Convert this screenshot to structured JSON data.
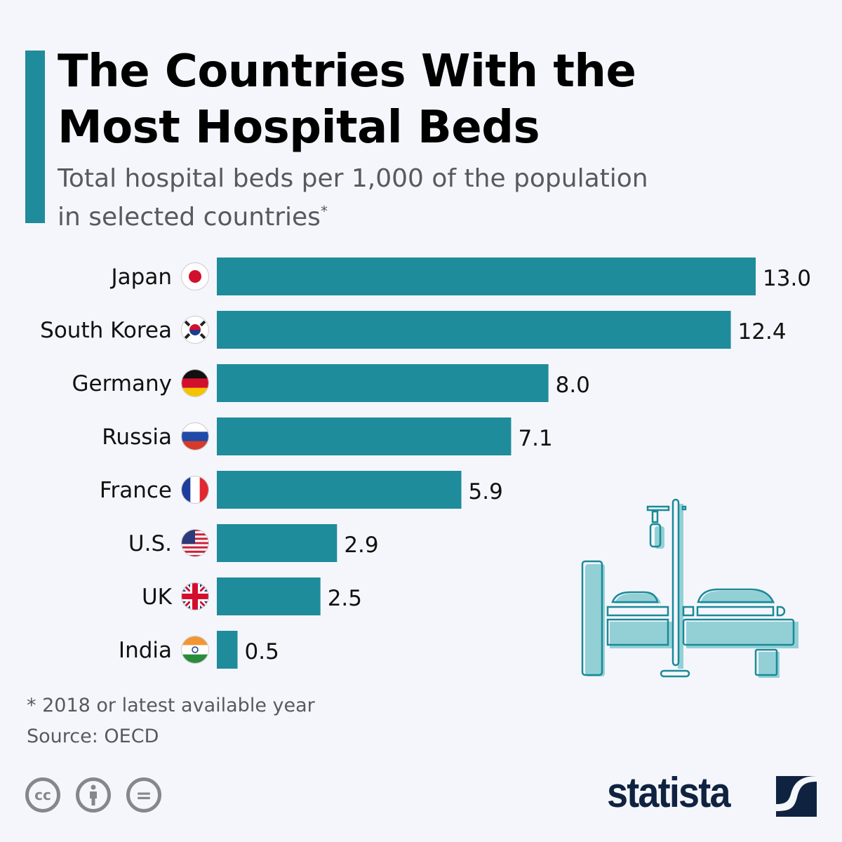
{
  "chart_data": {
    "type": "bar",
    "orientation": "horizontal",
    "title": "The Countries With the Most Hospital Beds",
    "subtitle": "Total hospital beds per 1,000 of the population in selected countries",
    "subtitle_mark": "*",
    "categories": [
      "Japan",
      "South Korea",
      "Germany",
      "Russia",
      "France",
      "U.S.",
      "UK",
      "India"
    ],
    "values": [
      13.0,
      12.4,
      8.0,
      7.1,
      5.9,
      2.9,
      2.5,
      0.5
    ],
    "value_labels": [
      "13.0",
      "12.4",
      "8.0",
      "7.1",
      "5.9",
      "2.9",
      "2.5",
      "0.5"
    ],
    "flags": [
      "japan-flag",
      "south-korea-flag",
      "germany-flag",
      "russia-flag",
      "france-flag",
      "us-flag",
      "uk-flag",
      "india-flag"
    ],
    "xlim": [
      0,
      13
    ],
    "bar_color": "#1f8c9c",
    "grid": false
  },
  "title_line1": "The Countries With the",
  "title_line2": "Most Hospital Beds",
  "subtitle_line1": "Total hospital beds per 1,000 of the population",
  "subtitle_line2": "in selected countries",
  "footnote": "* 2018 or latest available year",
  "source": "Source: OECD",
  "license": {
    "cc": "cc",
    "eq": "="
  },
  "brand": "statista"
}
